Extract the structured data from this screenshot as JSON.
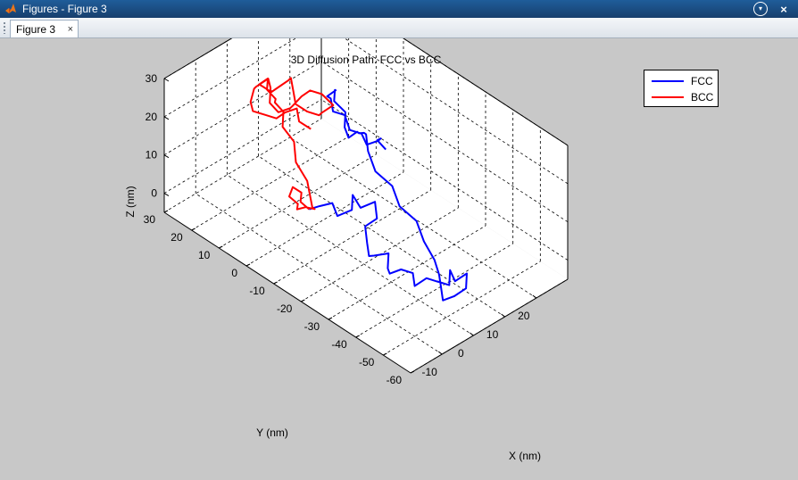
{
  "window": {
    "title": "Figures - Figure 3",
    "app_icon": "matlab-logo-icon",
    "menu_icon": "chevron-down-circle-icon",
    "close_icon": "close-icon"
  },
  "tabs": [
    {
      "label": "Figure 3",
      "close_icon": "close-icon"
    }
  ],
  "chart_data": {
    "type": "line",
    "projection": "3d",
    "title": "3D Diffusion Path: FCC vs BCC",
    "xlabel": "X (nm)",
    "ylabel": "Y (nm)",
    "zlabel": "Z (nm)",
    "xlim": [
      -20,
      30
    ],
    "ylim": [
      -60,
      30
    ],
    "zlim": [
      -5,
      30
    ],
    "xticks": [
      -10,
      0,
      10,
      20
    ],
    "yticks": [
      30,
      20,
      10,
      0,
      -10,
      -20,
      -30,
      -40,
      -50,
      -60
    ],
    "zticks": [
      0,
      10,
      20,
      30
    ],
    "grid": true,
    "grid_style": "dashed",
    "legend_position": "top-right",
    "series": [
      {
        "name": "FCC",
        "color": "#0000ff",
        "points": [
          [
            0,
            0,
            0
          ],
          [
            1.5,
            -2,
            1
          ],
          [
            3,
            -5,
            2.5
          ],
          [
            2,
            -8,
            1
          ],
          [
            4,
            -11,
            3
          ],
          [
            6,
            -9,
            5
          ],
          [
            5,
            -13,
            4
          ],
          [
            7,
            -16,
            6
          ],
          [
            5,
            -19,
            4
          ],
          [
            3,
            -17,
            2
          ],
          [
            1,
            -20,
            0
          ],
          [
            -1,
            -23,
            -1
          ],
          [
            -2,
            -26,
            1
          ],
          [
            0,
            -29,
            2
          ],
          [
            -2,
            -31,
            0
          ],
          [
            -4,
            -34,
            1
          ],
          [
            -3,
            -37,
            3
          ],
          [
            -1,
            -39,
            2
          ],
          [
            -3,
            -42,
            1
          ],
          [
            -1,
            -44,
            3
          ],
          [
            1,
            -46,
            2
          ],
          [
            -1,
            -48,
            4
          ],
          [
            1,
            -50,
            3
          ],
          [
            3,
            -48,
            5
          ],
          [
            2,
            -51,
            4
          ],
          [
            4,
            -53,
            6
          ],
          [
            2,
            -55,
            4
          ],
          [
            0,
            -53,
            2
          ],
          [
            -1,
            -50,
            0
          ],
          [
            1,
            -47,
            1
          ],
          [
            3,
            -44,
            2
          ],
          [
            5,
            -40,
            3
          ],
          [
            6,
            -35,
            5
          ],
          [
            8,
            -30,
            7
          ],
          [
            7,
            -25,
            9
          ],
          [
            9,
            -20,
            11
          ],
          [
            8,
            -15,
            13
          ],
          [
            10,
            -10,
            15
          ],
          [
            12,
            -7,
            17
          ],
          [
            14,
            -4,
            15
          ],
          [
            15,
            -1,
            13
          ],
          [
            17,
            2,
            11
          ],
          [
            16,
            4,
            9
          ],
          [
            18,
            7,
            8
          ],
          [
            20,
            10,
            7
          ],
          [
            22,
            12,
            9
          ],
          [
            21,
            15,
            11
          ],
          [
            23,
            17,
            12
          ],
          [
            25,
            19,
            10
          ],
          [
            24,
            21,
            8
          ],
          [
            26,
            22,
            6
          ],
          [
            25,
            20,
            4
          ],
          [
            27,
            18,
            3
          ],
          [
            26,
            15,
            1
          ],
          [
            28,
            13,
            0
          ],
          [
            27,
            10,
            -1
          ],
          [
            29,
            8,
            0
          ],
          [
            28,
            6,
            2
          ],
          [
            26,
            5,
            3
          ],
          [
            27,
            3,
            1
          ]
        ]
      },
      {
        "name": "BCC",
        "color": "#ff0000",
        "points": [
          [
            0,
            0,
            0
          ],
          [
            -1,
            2,
            1.5
          ],
          [
            1,
            4,
            2
          ],
          [
            0,
            6,
            3
          ],
          [
            -2,
            5,
            2
          ],
          [
            -1,
            3,
            0.5
          ],
          [
            -3,
            1,
            1
          ],
          [
            -2,
            -1,
            2
          ],
          [
            0,
            -2,
            1
          ],
          [
            1,
            0,
            0
          ],
          [
            2,
            3,
            5
          ],
          [
            1,
            6,
            9
          ],
          [
            3,
            9,
            12
          ],
          [
            2,
            12,
            15
          ],
          [
            4,
            14,
            17
          ],
          [
            3,
            16,
            19
          ],
          [
            5,
            18,
            18
          ],
          [
            4,
            20,
            20
          ],
          [
            6,
            22,
            21
          ],
          [
            5,
            24,
            19
          ],
          [
            7,
            25,
            17
          ],
          [
            8,
            23,
            16
          ],
          [
            9,
            21,
            18
          ],
          [
            10,
            19,
            20
          ],
          [
            9,
            17,
            22
          ],
          [
            8,
            15,
            20
          ],
          [
            7,
            13,
            18
          ],
          [
            9,
            11,
            16
          ],
          [
            11,
            9,
            15
          ],
          [
            10,
            7,
            17
          ],
          [
            12,
            5,
            19
          ],
          [
            11,
            8,
            21
          ],
          [
            9,
            10,
            22
          ],
          [
            8,
            12,
            20
          ],
          [
            6,
            13,
            18
          ],
          [
            7,
            15,
            16
          ],
          [
            5,
            17,
            15
          ],
          [
            4,
            19,
            17
          ],
          [
            6,
            21,
            19
          ],
          [
            7,
            23,
            20
          ],
          [
            5,
            25,
            18
          ],
          [
            6,
            27,
            16
          ],
          [
            4,
            26,
            14
          ],
          [
            3,
            24,
            13
          ],
          [
            5,
            22,
            12
          ],
          [
            7,
            20,
            11
          ],
          [
            8,
            18,
            13
          ],
          [
            10,
            16,
            14
          ],
          [
            9,
            14,
            12
          ],
          [
            11,
            12,
            10
          ]
        ]
      }
    ]
  }
}
